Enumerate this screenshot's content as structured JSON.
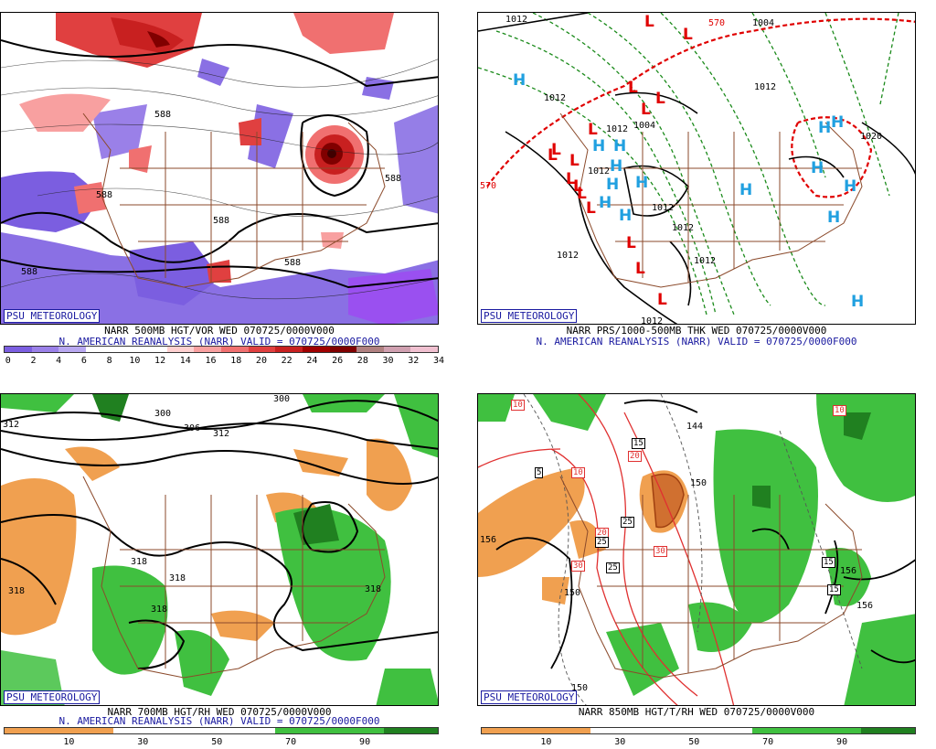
{
  "panels": [
    {
      "badge": "PSU METEOROLOGY",
      "caption1": "NARR 500MB HGT/VOR WED 070725/0000V000",
      "caption2": "N. AMERICAN REANALYSIS (NARR) VALID = 070725/0000F000",
      "scale_colors": [
        "#7b5ee0",
        "#9a80e8",
        "#b8a8f0",
        "#ffffff",
        "#ffffff",
        "#ffffff",
        "#ffd0d0",
        "#f8a0a0",
        "#f07070",
        "#e04040",
        "#c82020",
        "#a00000",
        "#800000",
        "#b08080",
        "#d0a0b0",
        "#f0c0d0"
      ],
      "scale_labels": [
        "0",
        "2",
        "4",
        "6",
        "8",
        "10",
        "12",
        "14",
        "16",
        "18",
        "20",
        "22",
        "24",
        "26",
        "28",
        "30",
        "32",
        "34"
      ],
      "contour_labels": [
        "588",
        "588",
        "588",
        "588",
        "588",
        "588"
      ],
      "highs": [],
      "lows": []
    },
    {
      "badge": "PSU METEOROLOGY",
      "caption1": "NARR PRS/1000-500MB THK WED 070725/0000V000",
      "caption2": "N. AMERICAN REANALYSIS (NARR) VALID = 070725/0000F000",
      "contour_labels": [
        "1012",
        "1004",
        "1012",
        "1012",
        "1012",
        "1012",
        "1012",
        "1012",
        "1012",
        "1012",
        "1012",
        "1020",
        "570",
        "570",
        "1004"
      ],
      "highs": [
        "H",
        "H",
        "H",
        "H",
        "H",
        "H",
        "H",
        "H",
        "H",
        "H",
        "H",
        "H",
        "H",
        "H",
        "H"
      ],
      "lows": [
        "L",
        "L",
        "L",
        "L",
        "L",
        "L",
        "L",
        "L",
        "L",
        "L",
        "L",
        "L",
        "L",
        "L",
        "L",
        "L"
      ]
    },
    {
      "badge": "PSU METEOROLOGY",
      "caption1": "NARR 700MB HGT/RH WED 070725/0000V000",
      "caption2": "N. AMERICAN REANALYSIS (NARR) VALID = 070725/0000F000",
      "scale_colors": [
        "#f0a050",
        "#f0a050",
        "#ffffff",
        "#ffffff",
        "#ffffff",
        "#40c040",
        "#40c040",
        "#208020"
      ],
      "scale_labels": [
        "10",
        "30",
        "50",
        "70",
        "90"
      ],
      "contour_labels": [
        "312",
        "300",
        "306",
        "312",
        "318",
        "318",
        "318",
        "318",
        "318",
        "300"
      ]
    },
    {
      "badge": "PSU METEOROLOGY",
      "caption1": "NARR 850MB HGT/T/RH WED 070725/0000V000",
      "scale_colors": [
        "#f0a050",
        "#f0a050",
        "#ffffff",
        "#ffffff",
        "#ffffff",
        "#40c040",
        "#40c040",
        "#208020"
      ],
      "scale_labels": [
        "10",
        "30",
        "50",
        "70",
        "90"
      ],
      "contour_labels": [
        "144",
        "156",
        "156",
        "156",
        "150",
        "150",
        "150"
      ],
      "boxed_labels": [
        "10",
        "10",
        "10",
        "15",
        "15",
        "15",
        "20",
        "20",
        "25",
        "25",
        "25",
        "30",
        "30",
        "5"
      ]
    }
  ]
}
